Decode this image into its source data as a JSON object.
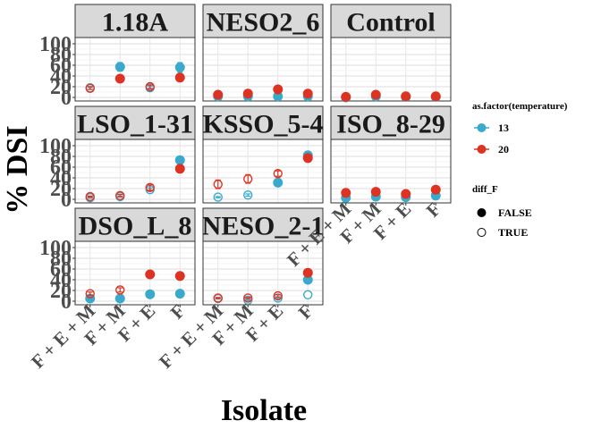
{
  "chart_data": {
    "type": "scatter",
    "xlabel": "Isolate",
    "ylabel": "% DSI",
    "categories": [
      "F + E + M",
      "F + M",
      "F + E",
      "F"
    ],
    "yticks": [
      0,
      20,
      40,
      60,
      80,
      100
    ],
    "ylim": [
      0,
      105
    ],
    "grid": true,
    "legend_position": "right",
    "legends": {
      "color": {
        "title": "as.factor(temperature)",
        "entries": [
          {
            "label": "13",
            "color": "#3AAACC"
          },
          {
            "label": "20",
            "color": "#DD3322"
          }
        ]
      },
      "shape": {
        "title": "diff_F",
        "entries": [
          {
            "label": "FALSE",
            "fill": "solid"
          },
          {
            "label": "TRUE",
            "fill": "open"
          }
        ]
      }
    },
    "panels": [
      {
        "strip": "1.18A",
        "series": [
          {
            "temperature": "13",
            "values": [
              18,
              57,
              18,
              56
            ],
            "err": [
              3,
              8,
              3,
              9
            ],
            "open": [
              true,
              false,
              true,
              false
            ]
          },
          {
            "temperature": "20",
            "values": [
              17,
              35,
              20,
              37
            ],
            "err": [
              2,
              3,
              3,
              3
            ],
            "open": [
              true,
              false,
              true,
              false
            ]
          }
        ]
      },
      {
        "strip": "NESO2_6",
        "series": [
          {
            "temperature": "13",
            "values": [
              2,
              2,
              2,
              2
            ],
            "err": [
              1,
              1,
              1,
              1
            ],
            "open": [
              false,
              false,
              false,
              false
            ]
          },
          {
            "temperature": "20",
            "values": [
              5,
              7,
              15,
              7
            ],
            "err": [
              2,
              2,
              3,
              2
            ],
            "open": [
              false,
              false,
              false,
              false
            ]
          }
        ]
      },
      {
        "strip": "Control",
        "series": [
          {
            "temperature": "13",
            "values": [
              0,
              2,
              1,
              1
            ],
            "err": [
              1,
              1,
              1,
              1
            ],
            "open": [
              false,
              false,
              false,
              false
            ]
          },
          {
            "temperature": "20",
            "values": [
              1,
              5,
              2,
              2
            ],
            "err": [
              1,
              2,
              1,
              1
            ],
            "open": [
              false,
              false,
              false,
              false
            ]
          }
        ]
      },
      {
        "strip": "LSO_1-31",
        "series": [
          {
            "temperature": "13",
            "values": [
              3,
              5,
              18,
              73
            ],
            "err": [
              1,
              1,
              3,
              3
            ],
            "open": [
              true,
              true,
              true,
              false
            ]
          },
          {
            "temperature": "20",
            "values": [
              5,
              7,
              22,
              57
            ],
            "err": [
              1,
              2,
              5,
              3
            ],
            "open": [
              true,
              true,
              true,
              false
            ]
          }
        ]
      },
      {
        "strip": "KSSO_5-4",
        "series": [
          {
            "temperature": "13",
            "values": [
              4,
              8,
              31,
              82
            ],
            "err": [
              1,
              2,
              4,
              3
            ],
            "open": [
              true,
              true,
              false,
              false
            ]
          },
          {
            "temperature": "20",
            "values": [
              28,
              38,
              48,
              77
            ],
            "err": [
              8,
              8,
              5,
              3
            ],
            "open": [
              true,
              true,
              true,
              false
            ]
          }
        ]
      },
      {
        "strip": "ISO_8-29",
        "series": [
          {
            "temperature": "13",
            "values": [
              3,
              5,
              4,
              7
            ],
            "err": [
              1,
              1,
              1,
              2
            ],
            "open": [
              false,
              false,
              false,
              false
            ]
          },
          {
            "temperature": "20",
            "values": [
              12,
              14,
              10,
              18
            ],
            "err": [
              2,
              2,
              2,
              3
            ],
            "open": [
              false,
              false,
              false,
              false
            ]
          }
        ]
      },
      {
        "strip": "DSO_L_8",
        "series": [
          {
            "temperature": "13",
            "values": [
              5,
              5,
              13,
              14
            ],
            "err": [
              1,
              1,
              1,
              1
            ],
            "open": [
              false,
              false,
              false,
              false
            ]
          },
          {
            "temperature": "20",
            "values": [
              14,
              21,
              50,
              47
            ],
            "err": [
              3,
              4,
              3,
              3
            ],
            "open": [
              true,
              true,
              false,
              false
            ]
          }
        ]
      },
      {
        "strip": "NESO_2-1",
        "series": [
          {
            "temperature": "13",
            "values": [
              5,
              2,
              6,
              40
            ],
            "err": [
              1,
              1,
              1,
              6
            ],
            "open": [
              true,
              true,
              true,
              false
            ]
          },
          {
            "temperature": "20",
            "values": [
              6,
              6,
              10,
              53
            ],
            "err": [
              1,
              1,
              2,
              4
            ],
            "open": [
              true,
              true,
              true,
              false
            ]
          }
        ]
      },
      {
        "strip": "",
        "series": []
      }
    ],
    "extra_points": [
      {
        "panel": "NESO_2-1",
        "temperature": "13",
        "category": "F",
        "value": 12,
        "open": true
      }
    ]
  }
}
